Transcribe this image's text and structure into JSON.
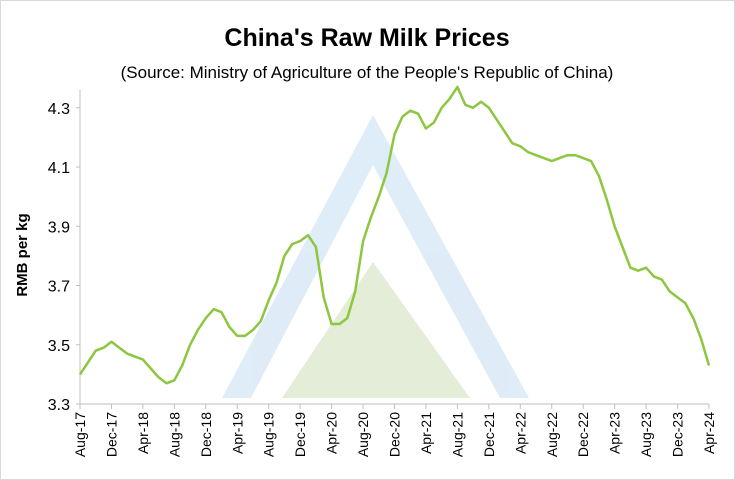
{
  "chart_data": {
    "type": "line",
    "title": "China's Raw Milk Prices",
    "subtitle": "(Source: Ministry of Agriculture of the People's Republic of China)",
    "y_label": "RMB per kg",
    "categories": [
      "Aug-17",
      null,
      null,
      null,
      "Dec-17",
      null,
      null,
      null,
      "Apr-18",
      null,
      null,
      null,
      "Aug-18",
      null,
      null,
      null,
      "Dec-18",
      null,
      null,
      null,
      "Apr-19",
      null,
      null,
      null,
      "Aug-19",
      null,
      null,
      null,
      "Dec-19",
      null,
      null,
      null,
      "Apr-20",
      null,
      null,
      null,
      "Aug-20",
      null,
      null,
      null,
      "Dec-20",
      null,
      null,
      null,
      "Apr-21",
      null,
      null,
      null,
      "Aug-21",
      null,
      null,
      null,
      "Dec-21",
      null,
      null,
      null,
      "Apr-22",
      null,
      null,
      null,
      "Aug-22",
      null,
      null,
      null,
      "Dec-22",
      null,
      null,
      null,
      "Apr-23",
      null,
      null,
      null,
      "Aug-23",
      null,
      null,
      null,
      "Dec-23",
      null,
      null,
      null,
      "Apr-24"
    ],
    "values": [
      3.4,
      3.44,
      3.48,
      3.49,
      3.51,
      3.49,
      3.47,
      3.46,
      3.45,
      3.42,
      3.39,
      3.37,
      3.38,
      3.43,
      3.5,
      3.55,
      3.59,
      3.62,
      3.61,
      3.56,
      3.53,
      3.53,
      3.55,
      3.58,
      3.65,
      3.71,
      3.8,
      3.84,
      3.85,
      3.87,
      3.83,
      3.66,
      3.57,
      3.57,
      3.59,
      3.68,
      3.85,
      3.93,
      4.0,
      4.08,
      4.21,
      4.27,
      4.29,
      4.28,
      4.23,
      4.25,
      4.3,
      4.33,
      4.37,
      4.31,
      4.3,
      4.32,
      4.3,
      4.26,
      4.22,
      4.18,
      4.17,
      4.15,
      4.14,
      4.13,
      4.12,
      4.13,
      4.14,
      4.14,
      4.13,
      4.12,
      4.07,
      3.99,
      3.9,
      3.83,
      3.76,
      3.75,
      3.76,
      3.73,
      3.72,
      3.68,
      3.66,
      3.64,
      3.59,
      3.52,
      3.43
    ],
    "color": "#8dc63f",
    "ylim": [
      3.3,
      4.36
    ],
    "yticks": [
      3.3,
      3.5,
      3.7,
      3.9,
      4.1,
      4.3
    ]
  }
}
